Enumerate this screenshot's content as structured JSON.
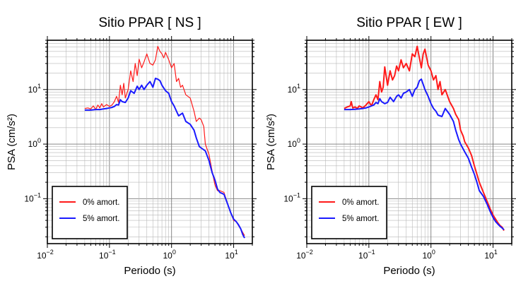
{
  "chart_data": [
    {
      "type": "line",
      "title": "Sitio PPAR [ NS ]",
      "xlabel": "Periodo (s)",
      "ylabel": "PSA (cm/s²)",
      "x_scale": "log",
      "y_scale": "log",
      "xlim": [
        0.01,
        20
      ],
      "ylim": [
        0.015,
        80
      ],
      "grid": true,
      "legend_position": "bottom-left",
      "x_ticks": [
        {
          "value": 0.01,
          "base": "10",
          "exp": "−2"
        },
        {
          "value": 0.1,
          "base": "10",
          "exp": "−1"
        },
        {
          "value": 1,
          "base": "10",
          "exp": "0"
        },
        {
          "value": 10,
          "base": "10",
          "exp": "1"
        }
      ],
      "y_ticks": [
        {
          "value": 0.1,
          "base": "10",
          "exp": "−1"
        },
        {
          "value": 1,
          "base": "10",
          "exp": "0"
        },
        {
          "value": 10,
          "base": "10",
          "exp": "1"
        }
      ],
      "series": [
        {
          "name": "0% amort.",
          "color": "#ff1a1a",
          "width": 1.2,
          "x": [
            0.04,
            0.045,
            0.05,
            0.055,
            0.06,
            0.065,
            0.07,
            0.075,
            0.08,
            0.09,
            0.1,
            0.11,
            0.12,
            0.13,
            0.14,
            0.15,
            0.16,
            0.17,
            0.18,
            0.2,
            0.22,
            0.24,
            0.26,
            0.28,
            0.3,
            0.33,
            0.36,
            0.4,
            0.45,
            0.5,
            0.55,
            0.6,
            0.65,
            0.7,
            0.75,
            0.8,
            0.9,
            1.0,
            1.1,
            1.2,
            1.3,
            1.4,
            1.5,
            1.7,
            2.0,
            2.3,
            2.5,
            2.8,
            3.0,
            3.3,
            3.5,
            4.0,
            4.5,
            5.0,
            5.5,
            6.0,
            7.0,
            8.0,
            9.0,
            10,
            11,
            12,
            13,
            14,
            15
          ],
          "y": [
            4.5,
            4.6,
            4.4,
            5.0,
            4.3,
            5.2,
            4.6,
            5.5,
            4.8,
            5.3,
            4.9,
            5.2,
            6.0,
            7.5,
            5.8,
            12.0,
            8.0,
            13.0,
            7.0,
            10.0,
            22.0,
            14.0,
            30.0,
            18.0,
            36.0,
            25.0,
            32.0,
            45.0,
            30.0,
            28.0,
            35.0,
            62.0,
            50.0,
            45.0,
            38.0,
            48.0,
            35.0,
            25.0,
            30.0,
            14.0,
            16.0,
            11.0,
            12.0,
            8.0,
            7.0,
            4.0,
            2.6,
            3.0,
            2.8,
            2.1,
            1.0,
            0.65,
            0.32,
            0.18,
            0.14,
            0.14,
            0.13,
            0.08,
            0.055,
            0.04,
            0.038,
            0.032,
            0.028,
            0.024,
            0.021
          ]
        },
        {
          "name": "5% amort.",
          "color": "#1a1aff",
          "width": 2.0,
          "x": [
            0.04,
            0.05,
            0.06,
            0.07,
            0.08,
            0.09,
            0.1,
            0.11,
            0.12,
            0.13,
            0.14,
            0.15,
            0.16,
            0.18,
            0.2,
            0.22,
            0.25,
            0.28,
            0.3,
            0.33,
            0.36,
            0.4,
            0.45,
            0.5,
            0.55,
            0.6,
            0.65,
            0.7,
            0.8,
            0.9,
            1.0,
            1.1,
            1.2,
            1.3,
            1.5,
            1.7,
            2.0,
            2.3,
            2.5,
            2.8,
            3.0,
            3.5,
            4.0,
            4.5,
            5.0,
            5.5,
            6.0,
            7.0,
            8.0,
            9.0,
            10,
            11,
            12,
            13,
            14,
            15
          ],
          "y": [
            4.2,
            4.2,
            4.3,
            4.3,
            4.4,
            4.5,
            4.6,
            4.7,
            4.9,
            5.3,
            5.2,
            6.5,
            6.0,
            5.8,
            7.0,
            9.5,
            8.5,
            11.5,
            10.0,
            12.0,
            10.0,
            12.0,
            14.0,
            11.0,
            16.0,
            15.5,
            14.5,
            12.0,
            9.5,
            8.5,
            6.0,
            5.0,
            4.0,
            3.3,
            3.7,
            2.6,
            2.3,
            1.8,
            1.3,
            0.9,
            0.85,
            0.75,
            0.5,
            0.3,
            0.22,
            0.15,
            0.13,
            0.12,
            0.08,
            0.055,
            0.042,
            0.038,
            0.033,
            0.028,
            0.022,
            0.019
          ]
        }
      ]
    },
    {
      "type": "line",
      "title": "Sitio PPAR [ EW ]",
      "xlabel": "Periodo (s)",
      "ylabel": "PSA (cm/s²)",
      "x_scale": "log",
      "y_scale": "log",
      "xlim": [
        0.01,
        20
      ],
      "ylim": [
        0.015,
        80
      ],
      "grid": true,
      "legend_position": "bottom-left",
      "x_ticks": [
        {
          "value": 0.01,
          "base": "10",
          "exp": "−2"
        },
        {
          "value": 0.1,
          "base": "10",
          "exp": "−1"
        },
        {
          "value": 1,
          "base": "10",
          "exp": "0"
        },
        {
          "value": 10,
          "base": "10",
          "exp": "1"
        }
      ],
      "y_ticks": [
        {
          "value": 0.1,
          "base": "10",
          "exp": "−1"
        },
        {
          "value": 1,
          "base": "10",
          "exp": "0"
        },
        {
          "value": 10,
          "base": "10",
          "exp": "1"
        }
      ],
      "series": [
        {
          "name": "0% amort.",
          "color": "#ff1a1a",
          "width": 2.0,
          "x": [
            0.04,
            0.045,
            0.05,
            0.052,
            0.055,
            0.06,
            0.065,
            0.07,
            0.08,
            0.09,
            0.1,
            0.11,
            0.12,
            0.13,
            0.14,
            0.15,
            0.16,
            0.17,
            0.18,
            0.2,
            0.22,
            0.24,
            0.26,
            0.28,
            0.3,
            0.33,
            0.36,
            0.4,
            0.45,
            0.5,
            0.55,
            0.6,
            0.65,
            0.7,
            0.75,
            0.8,
            0.9,
            1.0,
            1.1,
            1.2,
            1.3,
            1.4,
            1.5,
            1.7,
            2.0,
            2.3,
            2.5,
            2.8,
            3.0,
            3.3,
            3.5,
            4.0,
            4.5,
            5.0,
            5.5,
            6.0,
            7.0,
            8.0,
            9.0,
            10,
            11,
            12,
            13,
            14,
            15
          ],
          "y": [
            4.5,
            4.8,
            5.0,
            6.0,
            4.6,
            4.8,
            4.5,
            5.0,
            4.6,
            5.2,
            6.0,
            5.0,
            6.5,
            8.0,
            6.5,
            14.0,
            9.0,
            11.0,
            26.0,
            12.0,
            22.0,
            15.0,
            18.0,
            27.0,
            22.0,
            35.0,
            25.0,
            30.0,
            22.0,
            45.0,
            40.0,
            62.0,
            38.0,
            25.0,
            45.0,
            55.0,
            28.0,
            22.0,
            15.0,
            18.0,
            10.0,
            14.0,
            8.0,
            10.0,
            6.0,
            4.5,
            3.5,
            2.8,
            1.8,
            1.4,
            1.1,
            0.85,
            0.62,
            0.4,
            0.28,
            0.2,
            0.13,
            0.09,
            0.065,
            0.05,
            0.042,
            0.036,
            0.032,
            0.03,
            0.026
          ]
        },
        {
          "name": "5% amort.",
          "color": "#1a1aff",
          "width": 2.0,
          "x": [
            0.04,
            0.05,
            0.06,
            0.07,
            0.08,
            0.09,
            0.1,
            0.11,
            0.12,
            0.13,
            0.14,
            0.15,
            0.16,
            0.18,
            0.2,
            0.22,
            0.25,
            0.28,
            0.3,
            0.33,
            0.36,
            0.4,
            0.45,
            0.5,
            0.55,
            0.6,
            0.65,
            0.7,
            0.8,
            0.9,
            1.0,
            1.1,
            1.2,
            1.3,
            1.5,
            1.7,
            2.0,
            2.3,
            2.5,
            2.8,
            3.0,
            3.5,
            4.0,
            4.5,
            5.0,
            5.5,
            6.0,
            7.0,
            8.0,
            9.0,
            10,
            11,
            12,
            13,
            14,
            15
          ],
          "y": [
            4.3,
            4.3,
            4.35,
            4.4,
            4.5,
            4.6,
            4.8,
            5.0,
            5.2,
            5.8,
            5.5,
            6.8,
            6.0,
            5.5,
            5.8,
            7.2,
            6.0,
            7.5,
            8.0,
            7.0,
            8.5,
            9.0,
            10.0,
            7.5,
            10.0,
            11.0,
            14.5,
            15.5,
            10.0,
            7.5,
            5.5,
            4.5,
            4.0,
            3.4,
            3.2,
            4.5,
            3.5,
            2.6,
            1.8,
            1.2,
            1.0,
            0.72,
            0.55,
            0.38,
            0.28,
            0.2,
            0.14,
            0.11,
            0.08,
            0.058,
            0.045,
            0.038,
            0.034,
            0.031,
            0.029,
            0.027
          ]
        }
      ]
    }
  ]
}
